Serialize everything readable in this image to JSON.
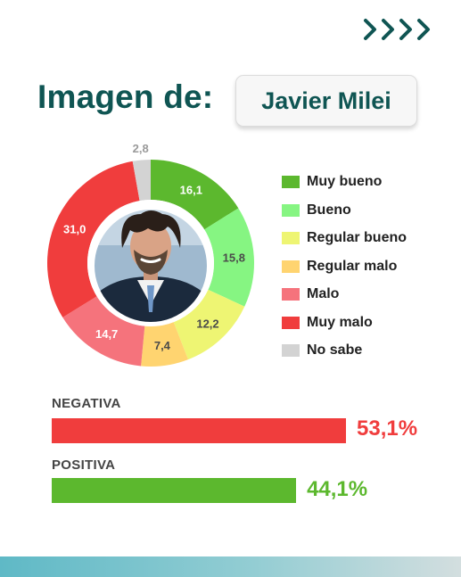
{
  "header": {
    "title": "Imagen de:",
    "subject": "Javier Milei"
  },
  "photo": {
    "icon": "person-portrait-icon"
  },
  "colors": {
    "brand": "#0f5553",
    "negative": "#f03d3d",
    "positive": "#5cb82e"
  },
  "chart_data": [
    {
      "type": "pie",
      "donut": true,
      "slices": [
        {
          "name": "Muy bueno",
          "value": 16.1,
          "label": "16,1",
          "color": "#5cb82e"
        },
        {
          "name": "Bueno",
          "value": 15.8,
          "label": "15,8",
          "color": "#86f582"
        },
        {
          "name": "Regular bueno",
          "value": 12.2,
          "label": "12,2",
          "color": "#eef573"
        },
        {
          "name": "Regular malo",
          "value": 7.4,
          "label": "7,4",
          "color": "#ffd470"
        },
        {
          "name": "Malo",
          "value": 14.7,
          "label": "14,7",
          "color": "#f5737c"
        },
        {
          "name": "Muy malo",
          "value": 31.0,
          "label": "31,0",
          "color": "#f03d3d"
        },
        {
          "name": "No sabe",
          "value": 2.8,
          "label": "2,8",
          "color": "#d3d3d3"
        }
      ],
      "legend_position": "right"
    },
    {
      "type": "bar",
      "orientation": "horizontal",
      "categories": [
        "NEGATIVA",
        "POSITIVA"
      ],
      "values": [
        53.1,
        44.1
      ],
      "value_labels": [
        "53,1%",
        "44,1%"
      ],
      "colors": [
        "#f03d3d",
        "#5cb82e"
      ]
    }
  ]
}
